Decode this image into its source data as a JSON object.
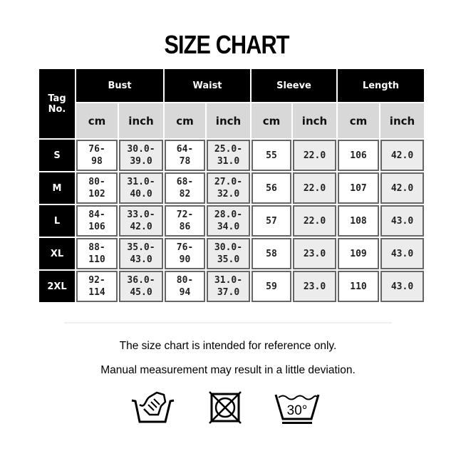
{
  "title": "SIZE CHART",
  "table": {
    "tag_header": "Tag No.",
    "groups": [
      "Bust",
      "Waist",
      "Sleeve",
      "Length"
    ],
    "units": [
      "cm",
      "inch",
      "cm",
      "inch",
      "cm",
      "inch",
      "cm",
      "inch"
    ],
    "rows": [
      {
        "tag": "S",
        "cells": [
          "76-98",
          "30.0-39.0",
          "64-78",
          "25.0-31.0",
          "55",
          "22.0",
          "106",
          "42.0"
        ]
      },
      {
        "tag": "M",
        "cells": [
          "80-102",
          "31.0-40.0",
          "68-82",
          "27.0-32.0",
          "56",
          "22.0",
          "107",
          "42.0"
        ]
      },
      {
        "tag": "L",
        "cells": [
          "84-106",
          "33.0-42.0",
          "72-86",
          "28.0-34.0",
          "57",
          "22.0",
          "108",
          "43.0"
        ]
      },
      {
        "tag": "XL",
        "cells": [
          "88-110",
          "35.0-43.0",
          "76-90",
          "30.0-35.0",
          "58",
          "23.0",
          "109",
          "43.0"
        ]
      },
      {
        "tag": "2XL",
        "cells": [
          "92-114",
          "36.0-45.0",
          "80-94",
          "31.0-37.0",
          "59",
          "23.0",
          "110",
          "43.0"
        ]
      }
    ]
  },
  "notes": [
    "The size chart is intended for reference only.",
    "Manual measurement may result in a little deviation."
  ],
  "care_icons": [
    {
      "name": "hand-wash-icon"
    },
    {
      "name": "do-not-tumble-dry-icon"
    },
    {
      "name": "wash-30-icon",
      "label": "30°"
    }
  ]
}
